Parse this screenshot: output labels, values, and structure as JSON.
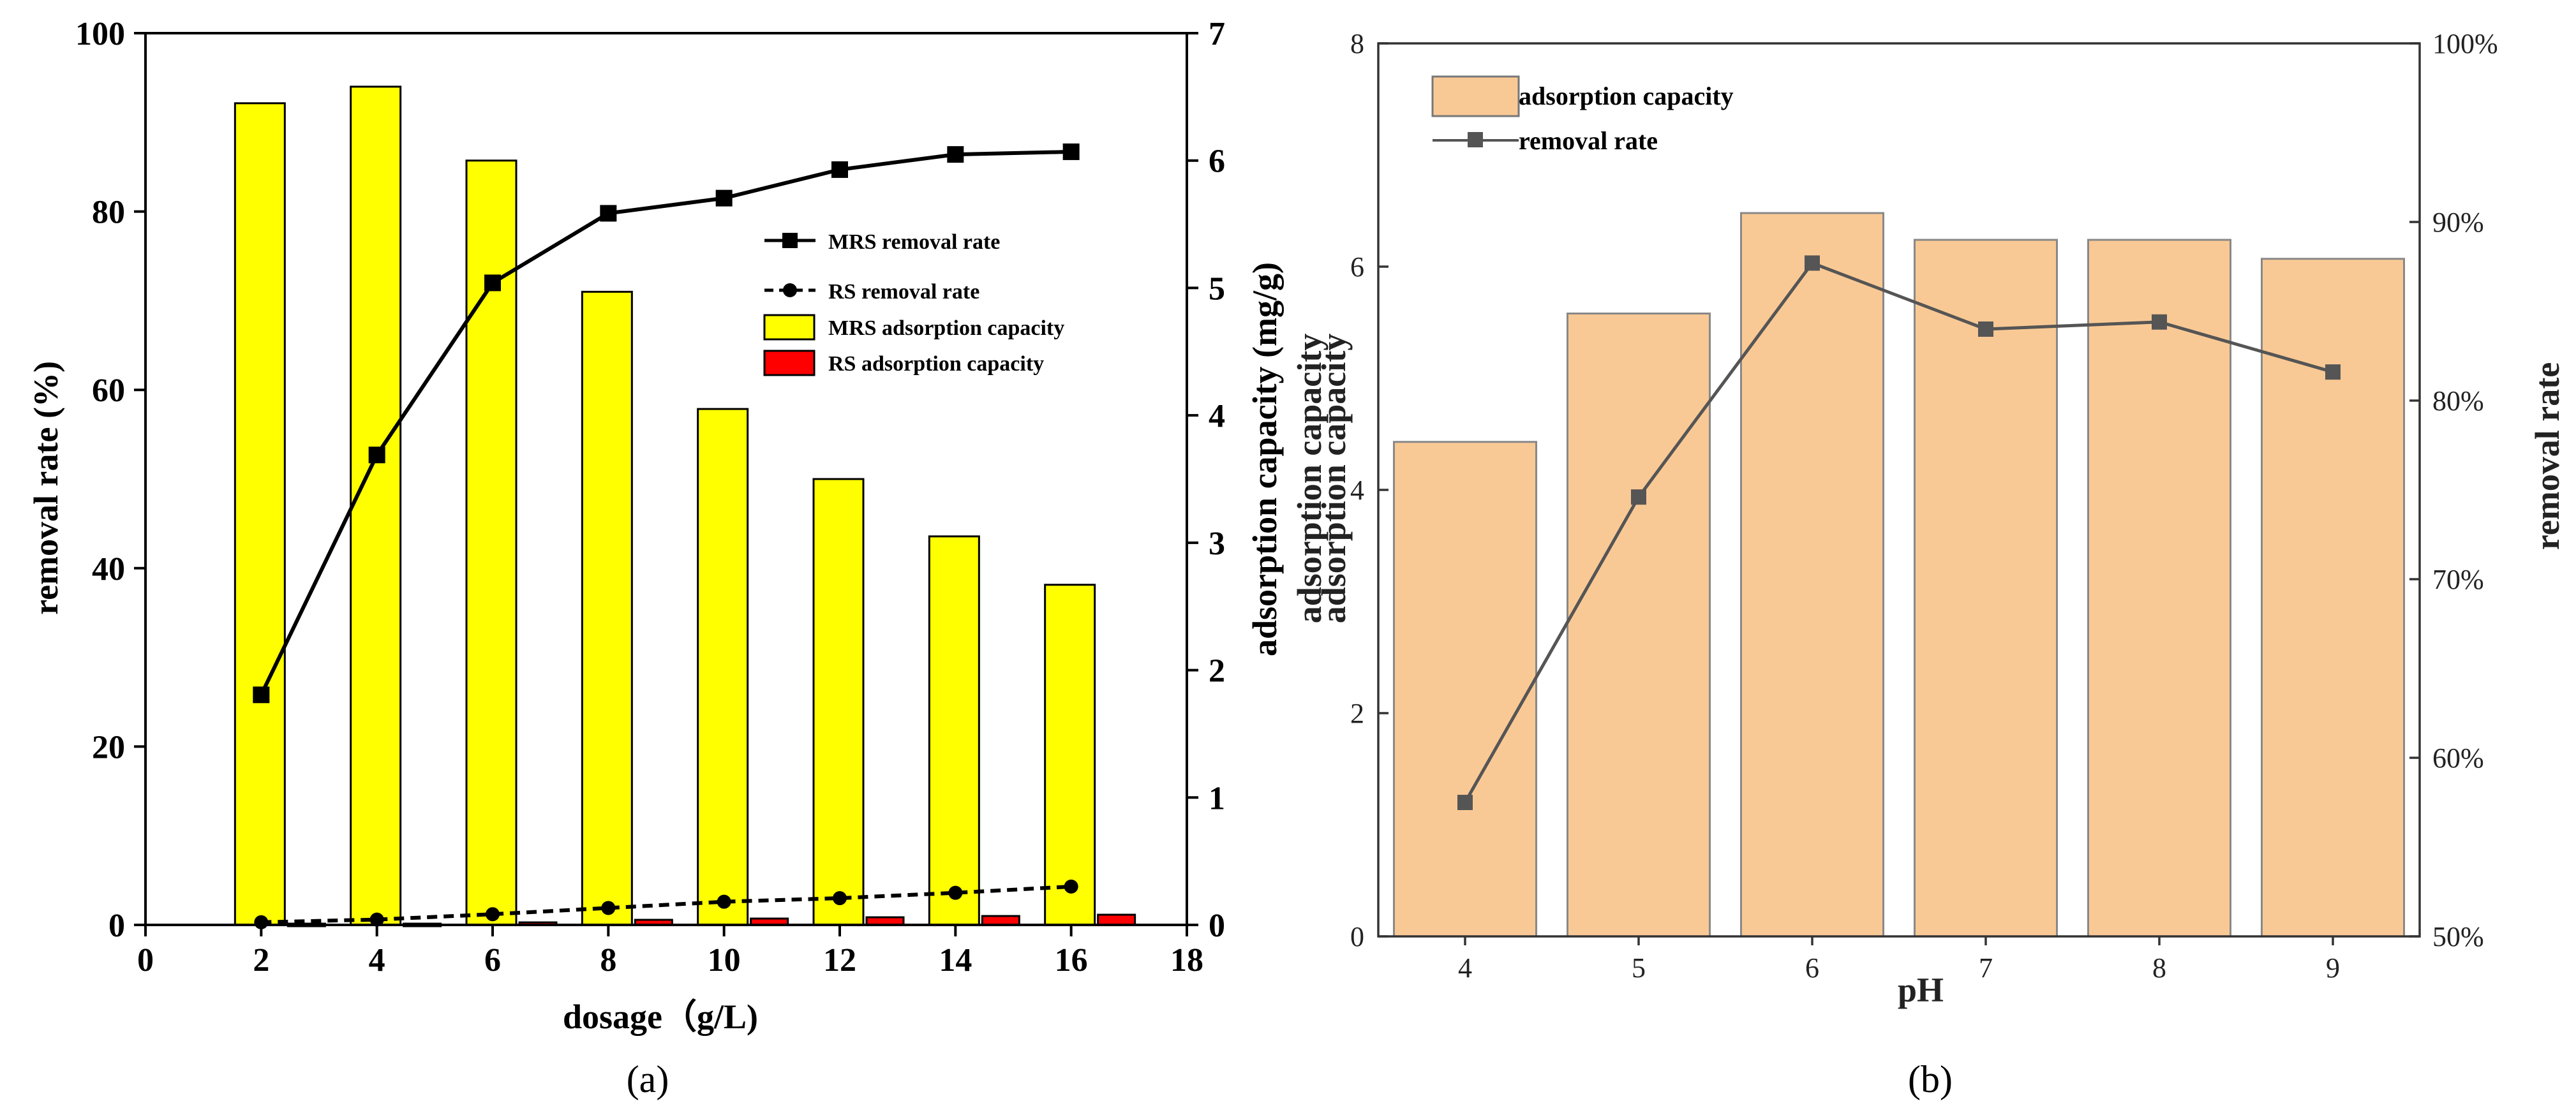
{
  "chart_data": [
    {
      "panel": "(a)",
      "type": "bar+line",
      "xlabel": "dosage（g/L)",
      "ylabel_left": "removal rate (%)",
      "ylabel_right": "adsorption capacity (mg/g)",
      "xlim": [
        0,
        18
      ],
      "ylim_left": [
        0,
        100
      ],
      "ylim_right": [
        0,
        7
      ],
      "x_ticks": [
        "0",
        "2",
        "4",
        "6",
        "8",
        "10",
        "12",
        "14",
        "16",
        "18"
      ],
      "y_left_ticks": [
        "0",
        "20",
        "40",
        "60",
        "80",
        "100"
      ],
      "y_right_ticks": [
        "0",
        "1",
        "2",
        "3",
        "4",
        "5",
        "6",
        "7"
      ],
      "x": [
        2,
        4,
        6,
        8,
        10,
        12,
        14,
        16
      ],
      "series": [
        {
          "name": "MRS removal rate",
          "kind": "line",
          "axis": "left",
          "color": "#000000",
          "marker": "square",
          "values": [
            25.8,
            52.7,
            72.0,
            79.8,
            81.5,
            84.7,
            86.4,
            86.7
          ]
        },
        {
          "name": "RS removal rate",
          "kind": "line",
          "axis": "left",
          "color": "#000000",
          "marker": "circle",
          "dash": true,
          "values": [
            0.3,
            0.6,
            1.2,
            1.9,
            2.6,
            3.0,
            3.6,
            4.3
          ]
        },
        {
          "name": "MRS adsorption capacity",
          "kind": "bar",
          "axis": "right",
          "color": "#ffff00",
          "values": [
            6.45,
            6.58,
            6.0,
            4.97,
            4.05,
            3.5,
            3.05,
            2.67
          ]
        },
        {
          "name": "RS adsorption capacity",
          "kind": "bar",
          "axis": "right",
          "color": "#ff0000",
          "values": [
            0.01,
            0.01,
            0.02,
            0.04,
            0.05,
            0.06,
            0.07,
            0.08
          ]
        }
      ],
      "caption": "(a)"
    },
    {
      "panel": "(b)",
      "type": "bar+line",
      "xlabel": "pH",
      "ylabel_left": "adsorption capacity",
      "ylabel_right": "removal rate",
      "ylim_left": [
        0,
        8
      ],
      "ylim_right": [
        50,
        100
      ],
      "categories": [
        "4",
        "5",
        "6",
        "7",
        "8",
        "9"
      ],
      "y_left_ticks": [
        "0",
        "2",
        "4",
        "6",
        "8"
      ],
      "y_right_ticks": [
        "50%",
        "60%",
        "70%",
        "80%",
        "90%",
        "100%"
      ],
      "series": [
        {
          "name": "adsorption capacity",
          "kind": "bar",
          "axis": "left",
          "color": "#f9c995",
          "values": [
            4.43,
            5.58,
            6.48,
            6.24,
            6.24,
            6.07
          ]
        },
        {
          "name": "removal rate",
          "kind": "line",
          "axis": "right",
          "color": "#555555",
          "marker": "square",
          "values": [
            57.5,
            74.6,
            87.7,
            84.0,
            84.4,
            81.6
          ]
        }
      ],
      "caption": "(b)"
    }
  ]
}
